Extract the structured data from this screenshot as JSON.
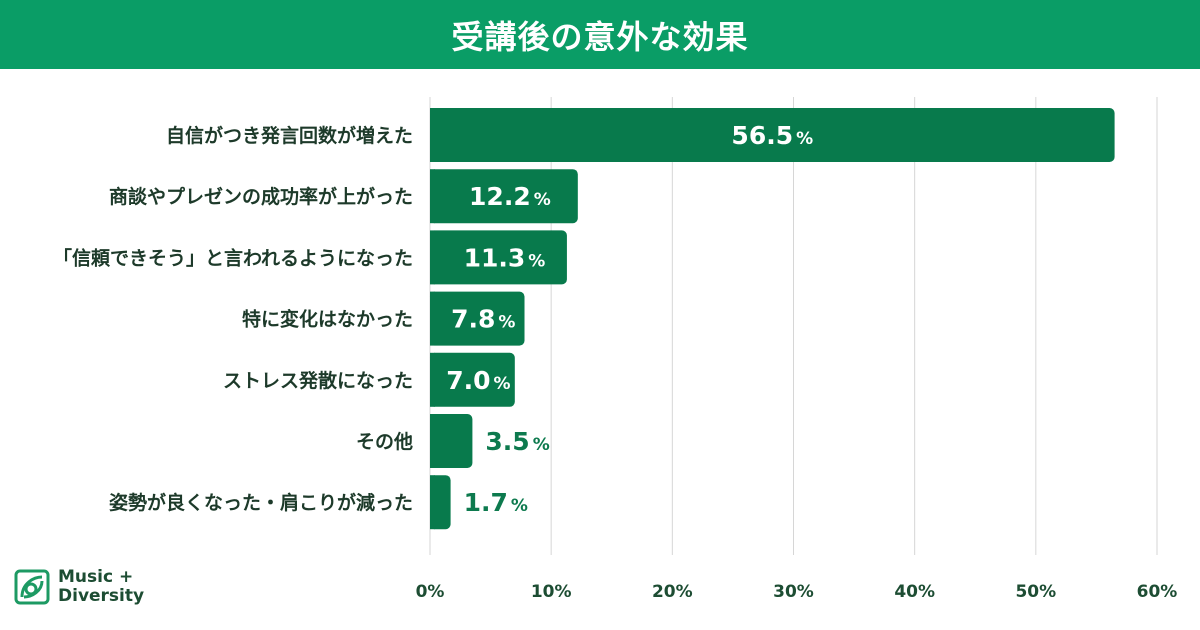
{
  "header": {
    "title": "受講後の意外な効果"
  },
  "brand": {
    "line1": "Music +",
    "line2": "Diversity"
  },
  "colors": {
    "header_bg": "#0a9d66",
    "bar": "#087a4c",
    "bar_top": "#067a4c",
    "label_text": "#1d3a2a",
    "value_outside": "#0d7a4e",
    "grid": "#d6d6d6",
    "tick_text": "#1d4d33"
  },
  "chart_data": {
    "type": "bar",
    "orientation": "horizontal",
    "categories": [
      "自信がつき発言回数が増えた",
      "商談やプレゼンの成功率が上がった",
      "「信頼できそう」と言われるようになった",
      "特に変化はなかった",
      "ストレス発散になった",
      "その他",
      "姿勢が良くなった・肩こりが減った"
    ],
    "values": [
      56.5,
      12.2,
      11.3,
      7.8,
      7.0,
      3.5,
      1.7
    ],
    "value_labels": [
      "56.5",
      "12.2",
      "11.3",
      "7.8",
      "7.0",
      "3.5",
      "1.7"
    ],
    "value_unit": "%",
    "xlim": [
      0,
      60
    ],
    "xticks": [
      0,
      10,
      20,
      30,
      40,
      50,
      60
    ],
    "xtick_labels": [
      "0%",
      "10%",
      "20%",
      "30%",
      "40%",
      "50%",
      "60%"
    ],
    "grid": true,
    "title": "受講後の意外な効果"
  }
}
